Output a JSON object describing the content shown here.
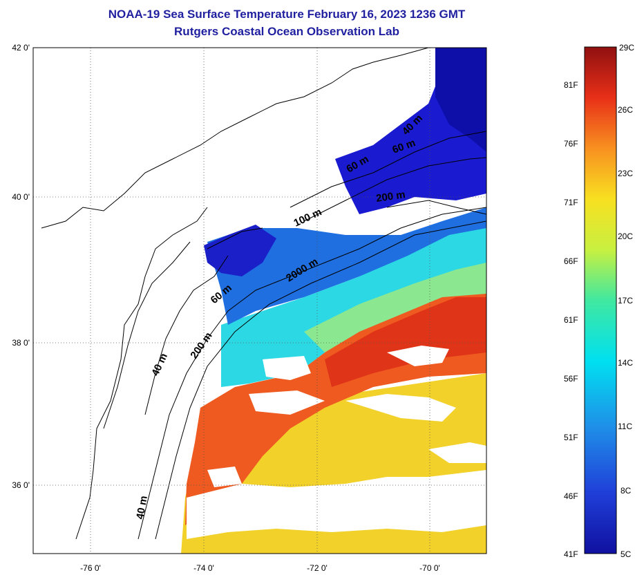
{
  "title": {
    "line1": "NOAA-19 Sea Surface Temperature February 16, 2023 1236 GMT",
    "line2": "Rutgers Coastal Ocean Observation Lab"
  },
  "map": {
    "colors": {
      "title": "#1f1fa0",
      "land": "#ffffff",
      "coast": "#000000",
      "cloud": "#ffffff"
    },
    "lat_ticks": [
      "42 0'",
      "40 0'",
      "38 0'",
      "36 0'"
    ],
    "lon_ticks": [
      "-76 0'",
      "-74 0'",
      "-72 0'",
      "-70 0'"
    ],
    "contour_labels": [
      "200 m",
      "100 m",
      "2000 m",
      "60 m",
      "200 m",
      "40 m",
      "40 m",
      "40 m",
      "60 m",
      "60 m"
    ]
  },
  "colorbar": {
    "fahrenheit": [
      "81F",
      "76F",
      "71F",
      "66F",
      "61F",
      "56F",
      "51F",
      "46F",
      "41F"
    ],
    "celsius": [
      "29C",
      "26C",
      "23C",
      "20C",
      "17C",
      "14C",
      "11C",
      "8C",
      "5C"
    ]
  }
}
